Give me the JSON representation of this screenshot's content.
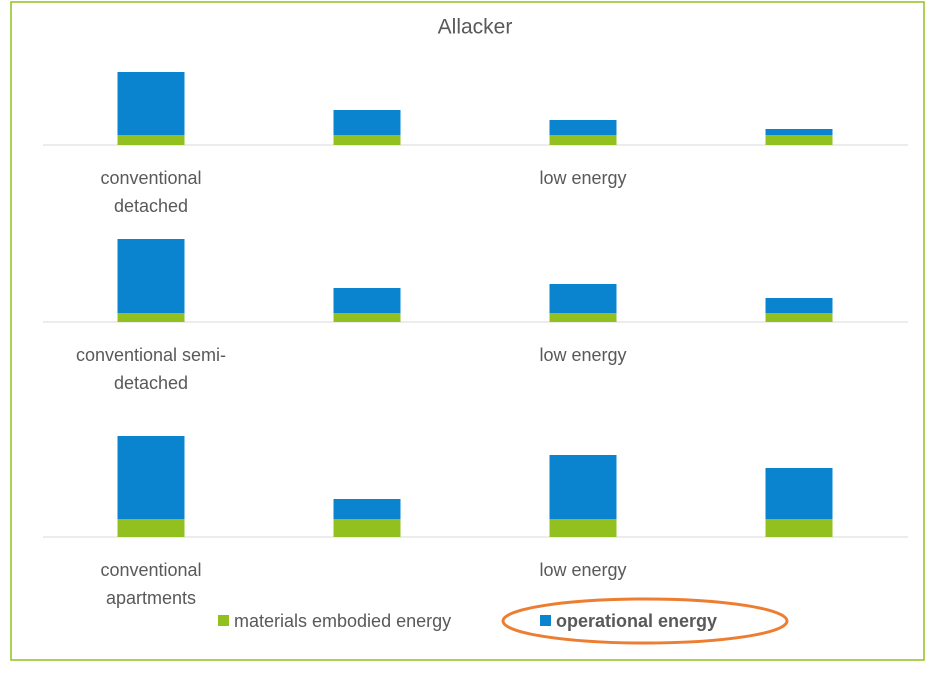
{
  "chart_data": [
    {
      "type": "bar",
      "title": "Allacker",
      "stacked": true,
      "categories": [
        "conventional detached",
        null,
        "low energy",
        null
      ],
      "series": [
        {
          "color": "#92c01f",
          "values": [
            10,
            10,
            10,
            10
          ]
        },
        {
          "color": "#0b84d0",
          "values": [
            63,
            25,
            15,
            6
          ]
        }
      ],
      "ylim": [
        0,
        100
      ]
    },
    {
      "type": "bar",
      "stacked": true,
      "categories": [
        "conventional semi-detached",
        null,
        "low energy",
        null
      ],
      "series": [
        {
          "color": "#92c01f",
          "values": [
            9,
            9,
            9,
            9
          ]
        },
        {
          "color": "#0b84d0",
          "values": [
            74,
            25,
            29,
            15
          ]
        }
      ],
      "ylim": [
        0,
        100
      ]
    },
    {
      "type": "bar",
      "stacked": true,
      "categories": [
        "conventional apartments",
        null,
        "low energy",
        null
      ],
      "series": [
        {
          "name": "materials embodied energy",
          "color": "#92c01f",
          "values": [
            18,
            18,
            18,
            18
          ]
        },
        {
          "name": "operational energy",
          "color": "#0b84d0",
          "values": [
            83,
            20,
            64,
            51
          ]
        }
      ],
      "ylim": [
        0,
        100
      ],
      "legend": "bottom"
    }
  ]
}
